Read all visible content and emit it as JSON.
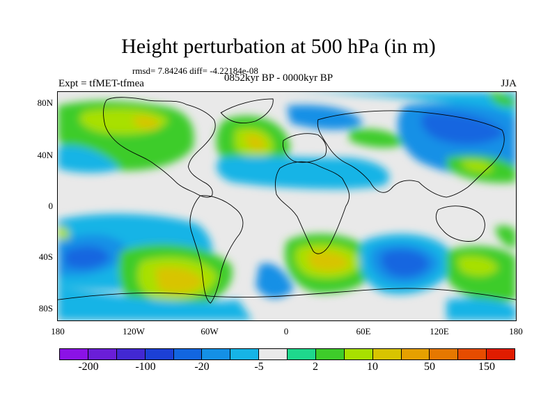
{
  "header": {
    "title": "Height perturbation at 500 hPa (in m)",
    "stats": "rmsd= 7.84246 diff= -4.22184e-08",
    "period": "0852kyr BP - 0000kyr BP",
    "experiment": "Expt = tfMET-tfmea",
    "season": "JJA"
  },
  "axes": {
    "y_ticks": [
      "80N",
      "40N",
      "0",
      "40S",
      "80S"
    ],
    "x_ticks": [
      "180",
      "120W",
      "60W",
      "0",
      "60E",
      "120E",
      "180"
    ]
  },
  "colorbar": {
    "colors": [
      "#8b12e6",
      "#6a1ed8",
      "#4228d2",
      "#1c40d6",
      "#1266e0",
      "#1490e6",
      "#16b4e6",
      "#e9e9e9",
      "#1ed88c",
      "#3ecc2a",
      "#a8e000",
      "#d8c400",
      "#e6a000",
      "#e67800",
      "#e64c00",
      "#e01c00"
    ],
    "labels": [
      "-200",
      "-100",
      "-20",
      "-5",
      "2",
      "10",
      "50",
      "150"
    ]
  }
}
